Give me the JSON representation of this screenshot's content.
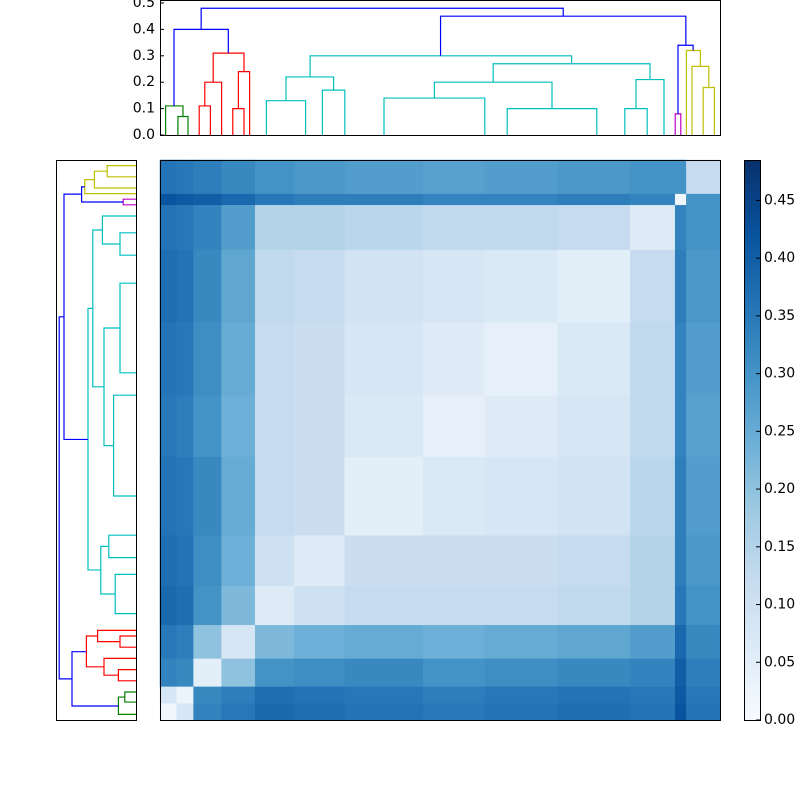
{
  "chart_data": {
    "type": "clustered-heatmap",
    "edges": [
      0,
      3,
      6,
      11,
      17,
      24,
      33,
      47,
      58,
      71,
      84,
      92,
      94,
      100
    ],
    "values": [
      [
        0.02,
        0.08,
        0.33,
        0.35,
        0.38,
        0.37,
        0.36,
        0.35,
        0.36,
        0.37,
        0.36,
        0.42,
        0.36
      ],
      [
        0.08,
        0.03,
        0.32,
        0.34,
        0.37,
        0.36,
        0.35,
        0.34,
        0.35,
        0.36,
        0.35,
        0.41,
        0.35
      ],
      [
        0.33,
        0.32,
        0.05,
        0.2,
        0.3,
        0.31,
        0.32,
        0.3,
        0.31,
        0.32,
        0.33,
        0.4,
        0.34
      ],
      [
        0.35,
        0.34,
        0.2,
        0.08,
        0.22,
        0.24,
        0.25,
        0.24,
        0.25,
        0.26,
        0.28,
        0.38,
        0.32
      ],
      [
        0.38,
        0.37,
        0.3,
        0.22,
        0.06,
        0.1,
        0.12,
        0.12,
        0.12,
        0.13,
        0.15,
        0.35,
        0.3
      ],
      [
        0.37,
        0.36,
        0.31,
        0.24,
        0.1,
        0.06,
        0.11,
        0.11,
        0.11,
        0.12,
        0.15,
        0.34,
        0.29
      ],
      [
        0.36,
        0.35,
        0.32,
        0.25,
        0.12,
        0.11,
        0.05,
        0.07,
        0.08,
        0.09,
        0.14,
        0.34,
        0.28
      ],
      [
        0.35,
        0.34,
        0.3,
        0.24,
        0.12,
        0.11,
        0.07,
        0.04,
        0.06,
        0.08,
        0.13,
        0.33,
        0.27
      ],
      [
        0.36,
        0.35,
        0.31,
        0.25,
        0.12,
        0.11,
        0.08,
        0.06,
        0.04,
        0.07,
        0.13,
        0.33,
        0.28
      ],
      [
        0.37,
        0.36,
        0.32,
        0.26,
        0.13,
        0.12,
        0.09,
        0.08,
        0.07,
        0.05,
        0.12,
        0.34,
        0.29
      ],
      [
        0.36,
        0.35,
        0.33,
        0.28,
        0.15,
        0.15,
        0.14,
        0.13,
        0.13,
        0.12,
        0.06,
        0.33,
        0.3
      ],
      [
        0.42,
        0.41,
        0.4,
        0.38,
        0.35,
        0.34,
        0.34,
        0.33,
        0.33,
        0.34,
        0.33,
        0.02,
        0.3
      ],
      [
        0.36,
        0.35,
        0.34,
        0.32,
        0.3,
        0.29,
        0.28,
        0.27,
        0.28,
        0.29,
        0.3,
        0.3,
        0.12
      ]
    ],
    "zlim": [
      0,
      0.485
    ],
    "colormap": [
      "#f7fbff",
      "#deebf7",
      "#c6dbef",
      "#9ecae1",
      "#6baed6",
      "#4292c6",
      "#2171b5",
      "#08519c",
      "#08306b"
    ],
    "zticks": [
      {
        "value": 0,
        "label": "0.00"
      },
      0.05,
      {
        "value": 0.1,
        "label": "0.10"
      },
      0.15,
      {
        "value": 0.2,
        "label": "0.20"
      },
      0.25,
      {
        "value": 0.3,
        "label": "0.30"
      },
      0.35,
      {
        "value": 0.4,
        "label": "0.40"
      },
      0.45
    ],
    "dendrogram": {
      "ylim": [
        0,
        0.5
      ],
      "yticks": [
        {
          "value": 0,
          "label": "0.0"
        },
        0.1,
        0.2,
        0.3,
        0.4,
        0.5
      ],
      "links": [
        {
          "l": 3.2,
          "r": 5,
          "hl": 0,
          "hr": 0,
          "h": 0.07,
          "color": "#008000"
        },
        {
          "l": 1,
          "r": 4.1,
          "hl": 0,
          "hr": 0.07,
          "h": 0.11,
          "color": "#008000"
        },
        {
          "l": 7,
          "r": 9,
          "hl": 0,
          "hr": 0,
          "h": 0.11,
          "color": "#ff0000"
        },
        {
          "l": 8,
          "r": 11,
          "hl": 0.11,
          "hr": 0,
          "h": 0.2,
          "color": "#ff0000"
        },
        {
          "l": 13,
          "r": 15,
          "hl": 0,
          "hr": 0,
          "h": 0.1,
          "color": "#ff0000"
        },
        {
          "l": 14,
          "r": 16,
          "hl": 0.1,
          "hr": 0,
          "h": 0.24,
          "color": "#ff0000"
        },
        {
          "l": 9.5,
          "r": 15,
          "hl": 0.2,
          "hr": 0.24,
          "h": 0.31,
          "color": "#ff0000"
        },
        {
          "l": 2.5,
          "r": 12.2,
          "hl": 0.11,
          "hr": 0.31,
          "h": 0.4,
          "color": "#0000ff"
        },
        {
          "l": 19,
          "r": 26,
          "hl": 0,
          "hr": 0,
          "h": 0.13,
          "color": "#00bfbf"
        },
        {
          "l": 29,
          "r": 33,
          "hl": 0,
          "hr": 0,
          "h": 0.17,
          "color": "#00bfbf"
        },
        {
          "l": 22.5,
          "r": 31,
          "hl": 0.13,
          "hr": 0.17,
          "h": 0.22,
          "color": "#00bfbf"
        },
        {
          "l": 40,
          "r": 58,
          "hl": 0,
          "hr": 0,
          "h": 0.14,
          "color": "#00bfbf"
        },
        {
          "l": 62,
          "r": 78,
          "hl": 0,
          "hr": 0,
          "h": 0.1,
          "color": "#00bfbf"
        },
        {
          "l": 49,
          "r": 70,
          "hl": 0.14,
          "hr": 0.1,
          "h": 0.2,
          "color": "#00bfbf"
        },
        {
          "l": 83,
          "r": 87,
          "hl": 0,
          "hr": 0,
          "h": 0.1,
          "color": "#00bfbf"
        },
        {
          "l": 85,
          "r": 90,
          "hl": 0.1,
          "hr": 0,
          "h": 0.21,
          "color": "#00bfbf"
        },
        {
          "l": 59.5,
          "r": 87.5,
          "hl": 0.2,
          "hr": 0.21,
          "h": 0.27,
          "color": "#00bfbf"
        },
        {
          "l": 26.8,
          "r": 73.5,
          "hl": 0.22,
          "hr": 0.27,
          "h": 0.3,
          "color": "#00bfbf"
        },
        {
          "l": 92,
          "r": 93,
          "hl": 0,
          "hr": 0,
          "h": 0.08,
          "color": "#bf00bf"
        },
        {
          "l": 97,
          "r": 99,
          "hl": 0,
          "hr": 0,
          "h": 0.18,
          "color": "#bfbf00"
        },
        {
          "l": 95,
          "r": 98,
          "hl": 0,
          "hr": 0.18,
          "h": 0.26,
          "color": "#bfbf00"
        },
        {
          "l": 94,
          "r": 96.5,
          "hl": 0,
          "hr": 0.26,
          "h": 0.32,
          "color": "#bfbf00"
        },
        {
          "l": 92.5,
          "r": 95.2,
          "hl": 0.08,
          "hr": 0.32,
          "h": 0.34,
          "color": "#0000ff"
        },
        {
          "l": 50.1,
          "r": 93.9,
          "hl": 0.3,
          "hr": 0.34,
          "h": 0.45,
          "color": "#0000ff"
        },
        {
          "l": 7.35,
          "r": 72,
          "hl": 0.4,
          "hr": 0.45,
          "h": 0.48,
          "color": "#0000ff"
        }
      ]
    }
  }
}
